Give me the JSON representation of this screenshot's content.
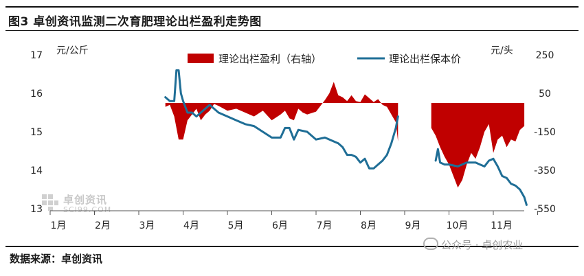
{
  "figure": {
    "title": "图3 卓创资讯监测二次育肥理论出栏盈利走势图",
    "source": "数据来源：卓创资讯",
    "watermark_cn": "卓创资讯",
    "watermark_en": "SCI99.COM",
    "wechat_label": "公众号 · 卓创农业"
  },
  "chart_data": {
    "type": "area+line",
    "categories": [
      "1月",
      "2月",
      "3月",
      "4月",
      "5月",
      "6月",
      "7月",
      "8月",
      "9月",
      "10月",
      "11月"
    ],
    "left_axis": {
      "unit": "元/公斤",
      "ticks": [
        13,
        14,
        15,
        16,
        17
      ],
      "range": [
        13,
        17
      ]
    },
    "right_axis": {
      "unit": "元/头",
      "ticks": [
        -550,
        -350,
        -150,
        50,
        250
      ],
      "range": [
        -550,
        250
      ]
    },
    "grid": false,
    "legend_position": "top",
    "series": [
      {
        "name": "理论出栏盈利（右轴）",
        "axis": "right",
        "type": "area",
        "color": "#c00000",
        "segments": [
          [
            [
              3.6,
              -20
            ],
            [
              3.7,
              -10
            ],
            [
              3.8,
              -70
            ],
            [
              3.9,
              -190
            ],
            [
              4.0,
              -190
            ],
            [
              4.1,
              -90
            ],
            [
              4.2,
              -60
            ],
            [
              4.3,
              -30
            ],
            [
              4.4,
              -90
            ],
            [
              4.5,
              -60
            ],
            [
              4.6,
              -40
            ],
            [
              4.7,
              -5
            ],
            [
              4.8,
              -15
            ],
            [
              5.0,
              -40
            ],
            [
              5.2,
              -30
            ],
            [
              5.4,
              -50
            ],
            [
              5.6,
              -70
            ],
            [
              5.8,
              -40
            ],
            [
              6.0,
              -90
            ],
            [
              6.2,
              -60
            ],
            [
              6.3,
              -40
            ],
            [
              6.4,
              -80
            ],
            [
              6.5,
              -90
            ],
            [
              6.6,
              -30
            ],
            [
              6.7,
              -50
            ],
            [
              6.8,
              -60
            ],
            [
              7.0,
              -45
            ],
            [
              7.2,
              15
            ],
            [
              7.3,
              50
            ],
            [
              7.4,
              110
            ],
            [
              7.5,
              40
            ],
            [
              7.6,
              30
            ],
            [
              7.7,
              10
            ],
            [
              7.8,
              40
            ],
            [
              7.9,
              10
            ],
            [
              8.0,
              5
            ],
            [
              8.1,
              45
            ],
            [
              8.3,
              5
            ],
            [
              8.4,
              20
            ],
            [
              8.5,
              -10
            ],
            [
              8.6,
              -20
            ],
            [
              8.7,
              -60
            ],
            [
              8.8,
              -100
            ],
            [
              8.85,
              -200
            ],
            [
              8.85,
              0
            ]
          ],
          [
            [
              9.6,
              -130
            ],
            [
              9.7,
              -170
            ],
            [
              9.8,
              -230
            ],
            [
              9.9,
              -280
            ],
            [
              10.0,
              -320
            ],
            [
              10.1,
              -380
            ],
            [
              10.2,
              -440
            ],
            [
              10.3,
              -400
            ],
            [
              10.4,
              -320
            ],
            [
              10.5,
              -260
            ],
            [
              10.6,
              -290
            ],
            [
              10.7,
              -230
            ],
            [
              10.8,
              -150
            ],
            [
              10.9,
              -110
            ],
            [
              11.0,
              -260
            ],
            [
              11.1,
              -190
            ],
            [
              11.2,
              -170
            ],
            [
              11.3,
              -230
            ],
            [
              11.4,
              -190
            ],
            [
              11.5,
              -200
            ],
            [
              11.6,
              -140
            ],
            [
              11.7,
              -120
            ]
          ]
        ]
      },
      {
        "name": "理论出栏保本价",
        "axis": "left",
        "type": "line",
        "color": "#1f6e96",
        "segments": [
          [
            [
              3.6,
              15.9
            ],
            [
              3.7,
              15.8
            ],
            [
              3.8,
              15.8
            ],
            [
              3.85,
              16.6
            ],
            [
              3.9,
              16.6
            ],
            [
              3.95,
              16.0
            ],
            [
              4.0,
              15.8
            ],
            [
              4.1,
              15.5
            ],
            [
              4.2,
              15.5
            ],
            [
              4.3,
              15.4
            ],
            [
              4.4,
              15.5
            ],
            [
              4.5,
              15.6
            ],
            [
              4.6,
              15.7
            ],
            [
              4.7,
              15.6
            ],
            [
              4.8,
              15.5
            ],
            [
              5.0,
              15.4
            ],
            [
              5.2,
              15.3
            ],
            [
              5.4,
              15.2
            ],
            [
              5.6,
              15.15
            ],
            [
              5.8,
              15.0
            ],
            [
              6.0,
              14.85
            ],
            [
              6.2,
              14.85
            ],
            [
              6.3,
              15.1
            ],
            [
              6.4,
              15.1
            ],
            [
              6.5,
              14.8
            ],
            [
              6.6,
              15.05
            ],
            [
              6.8,
              15.0
            ],
            [
              7.0,
              14.8
            ],
            [
              7.2,
              14.85
            ],
            [
              7.4,
              14.75
            ],
            [
              7.5,
              14.7
            ],
            [
              7.6,
              14.6
            ],
            [
              7.7,
              14.4
            ],
            [
              7.8,
              14.4
            ],
            [
              7.9,
              14.35
            ],
            [
              8.0,
              14.2
            ],
            [
              8.1,
              14.3
            ],
            [
              8.2,
              14.05
            ],
            [
              8.3,
              14.05
            ],
            [
              8.4,
              14.15
            ],
            [
              8.5,
              14.25
            ],
            [
              8.6,
              14.4
            ],
            [
              8.7,
              14.7
            ],
            [
              8.8,
              15.1
            ],
            [
              8.85,
              15.4
            ]
          ],
          [
            [
              9.7,
              14.25
            ],
            [
              9.75,
              14.55
            ],
            [
              9.8,
              14.2
            ],
            [
              9.9,
              14.15
            ],
            [
              10.0,
              14.15
            ],
            [
              10.2,
              14.1
            ],
            [
              10.4,
              14.2
            ],
            [
              10.5,
              14.2
            ],
            [
              10.6,
              14.2
            ],
            [
              10.7,
              14.15
            ],
            [
              10.8,
              14.1
            ],
            [
              10.9,
              14.25
            ],
            [
              11.0,
              14.3
            ],
            [
              11.1,
              14.1
            ],
            [
              11.2,
              13.85
            ],
            [
              11.3,
              13.8
            ],
            [
              11.4,
              13.65
            ],
            [
              11.5,
              13.6
            ],
            [
              11.6,
              13.5
            ],
            [
              11.7,
              13.3
            ],
            [
              11.75,
              13.1
            ]
          ]
        ]
      }
    ]
  }
}
